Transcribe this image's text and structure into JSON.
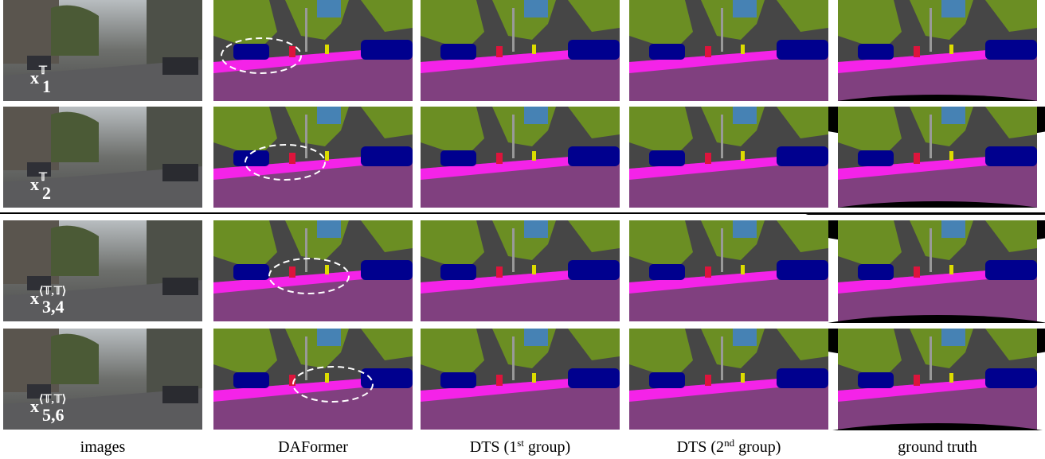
{
  "columns": [
    {
      "parts": [
        "images"
      ]
    },
    {
      "parts": [
        "DAFormer"
      ]
    },
    {
      "parts": [
        "DTS (1",
        "st",
        " group)"
      ]
    },
    {
      "parts": [
        "DTS (2",
        "nd",
        " group)"
      ]
    },
    {
      "parts": [
        "ground truth"
      ]
    }
  ],
  "rows": [
    {
      "symbol": "x",
      "sub": "1",
      "sup": "𝕋"
    },
    {
      "symbol": "x",
      "sub": "2",
      "sup": "𝕋"
    },
    {
      "symbol": "x",
      "sub": "3,4",
      "sup": "⟨𝕋,𝕋⟩"
    },
    {
      "symbol": "x",
      "sub": "5,6",
      "sup": "⟨𝕋,𝕋⟩"
    }
  ]
}
